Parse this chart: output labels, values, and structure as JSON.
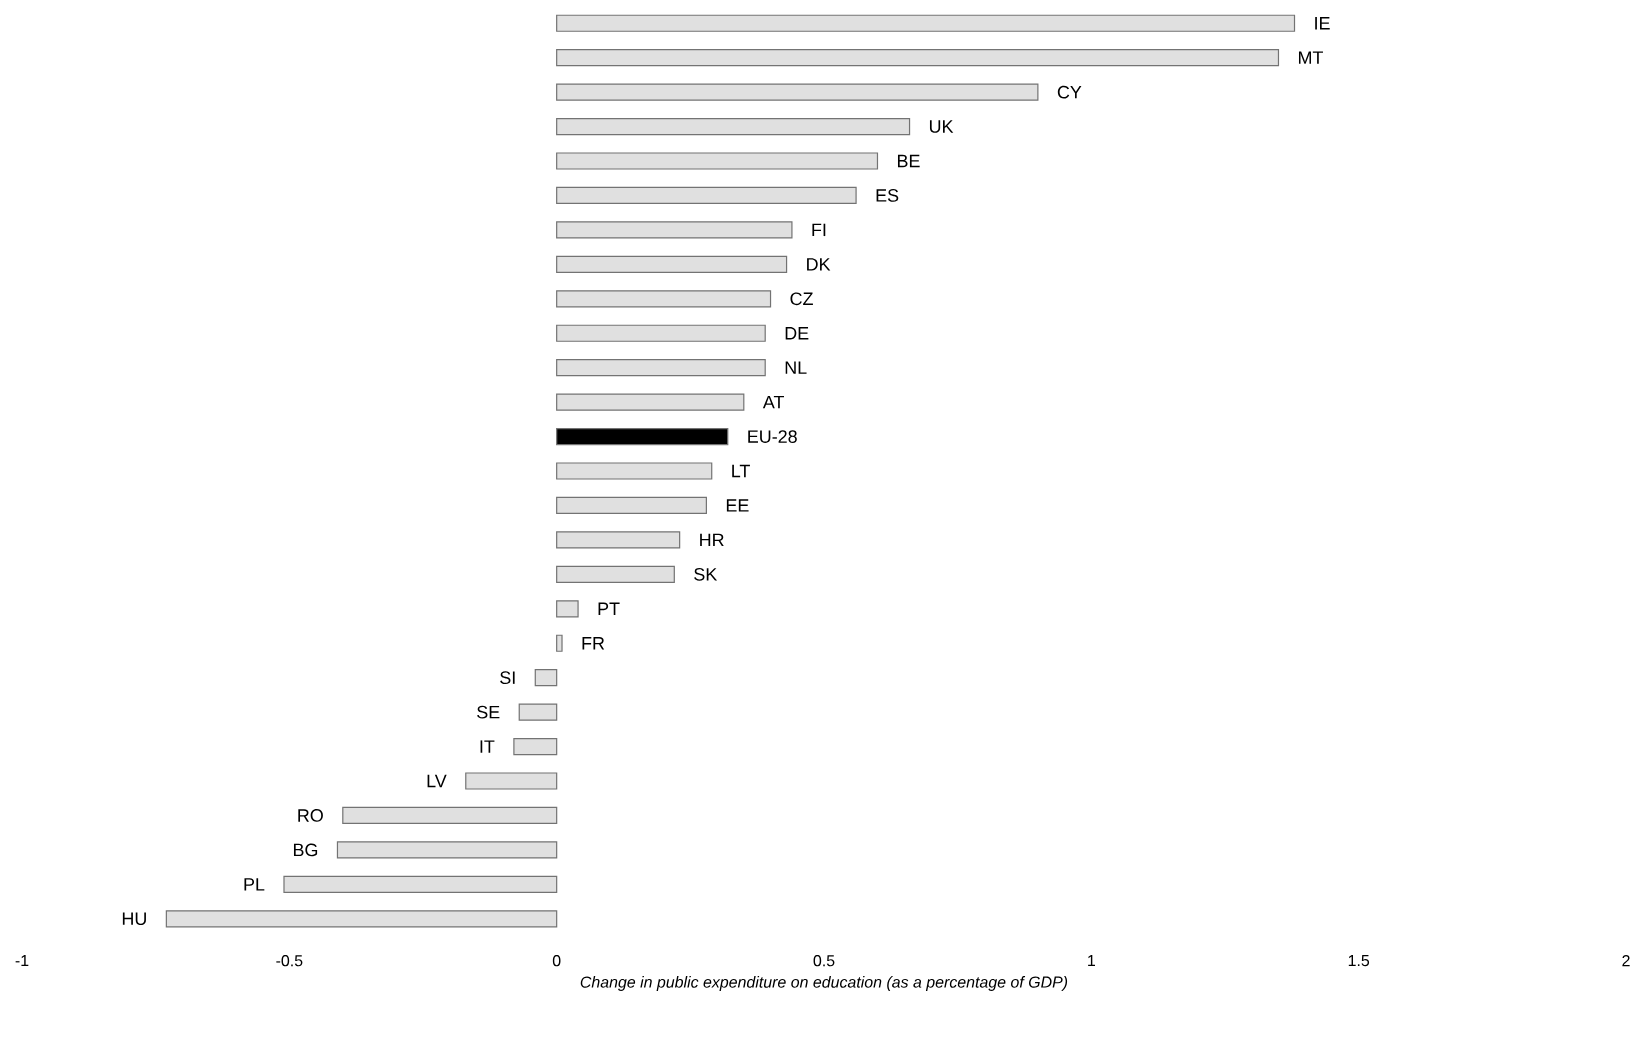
{
  "chart_data": {
    "type": "bar",
    "orientation": "horizontal",
    "xlabel": "*Change in public expenditure on education (as a percentage of GDP)*",
    "categories": [
      "IE",
      "MT",
      "CY",
      "UK",
      "BE",
      "ES",
      "FI",
      "DK",
      "CZ",
      "DE",
      "NL",
      "AT",
      "EU-28",
      "LT",
      "EE",
      "HR",
      "SK",
      "PT",
      "FR",
      "SI",
      "SE",
      "IT",
      "LV",
      "RO",
      "BG",
      "PL",
      "HU"
    ],
    "values": [
      1.38,
      1.35,
      0.9,
      0.66,
      0.6,
      0.56,
      0.44,
      0.43,
      0.4,
      0.39,
      0.39,
      0.35,
      0.32,
      0.29,
      0.28,
      0.23,
      0.22,
      0.04,
      0.01,
      -0.04,
      -0.07,
      -0.08,
      -0.17,
      -0.4,
      -0.41,
      -0.51,
      -0.73
    ],
    "colors": [
      "#e0e0e0",
      "#e0e0e0",
      "#e0e0e0",
      "#e0e0e0",
      "#e0e0e0",
      "#e0e0e0",
      "#e0e0e0",
      "#e0e0e0",
      "#e0e0e0",
      "#e0e0e0",
      "#e0e0e0",
      "#e0e0e0",
      "#000000",
      "#e0e0e0",
      "#e0e0e0",
      "#e0e0e0",
      "#e0e0e0",
      "#e0e0e0",
      "#e0e0e0",
      "#e0e0e0",
      "#e0e0e0",
      "#e0e0e0",
      "#e0e0e0",
      "#e0e0e0",
      "#e0e0e0",
      "#e0e0e0",
      "#e0e0e0"
    ],
    "xlim": [
      -1,
      2
    ],
    "xticks": [
      -1,
      -0.5,
      0,
      0.5,
      1,
      1.5,
      2
    ]
  }
}
